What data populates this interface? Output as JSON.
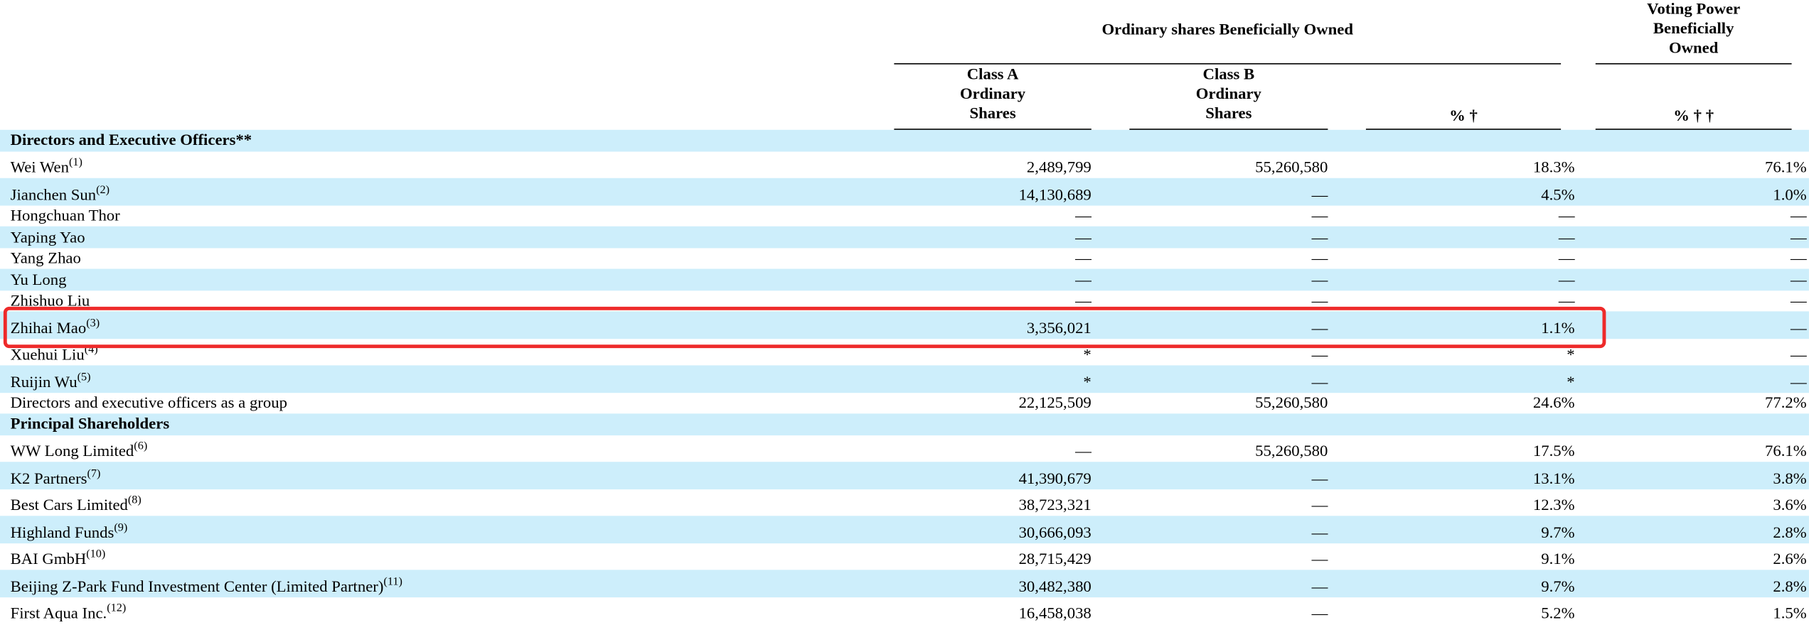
{
  "header": {
    "groups": [
      {
        "title": "Ordinary shares Beneficially Owned"
      },
      {
        "title": "Voting Power Beneficially Owned"
      }
    ],
    "columns": [
      "Class A Ordinary Shares",
      "Class B Ordinary Shares",
      "% †",
      "% † †"
    ]
  },
  "sections": [
    {
      "title": "Directors and Executive Officers**",
      "rows": [
        {
          "name": "Wei Wen",
          "note": "(1)",
          "values": [
            "2,489,799",
            "55,260,580",
            "18.3%",
            "76.1%"
          ]
        },
        {
          "name": "Jianchen Sun",
          "note": "(2)",
          "values": [
            "14,130,689",
            "—",
            "4.5%",
            "1.0%"
          ]
        },
        {
          "name": "Hongchuan Thor",
          "values": [
            "—",
            "—",
            "—",
            "—"
          ]
        },
        {
          "name": "Yaping Yao",
          "values": [
            "—",
            "—",
            "—",
            "—"
          ]
        },
        {
          "name": "Yang Zhao",
          "values": [
            "—",
            "—",
            "—",
            "—"
          ]
        },
        {
          "name": "Yu Long",
          "values": [
            "—",
            "—",
            "—",
            "—"
          ]
        },
        {
          "name": "Zhishuo Liu",
          "values": [
            "—",
            "—",
            "—",
            "—"
          ]
        },
        {
          "name": "Zhihai Mao",
          "note": "(3)",
          "values": [
            "3,356,021",
            "—",
            "1.1%",
            "—"
          ]
        },
        {
          "name": "Xuehui Liu",
          "note": "(4)",
          "values": [
            "*",
            "—",
            "*",
            "—"
          ]
        },
        {
          "name": "Ruijin Wu",
          "note": "(5)",
          "values": [
            "*",
            "—",
            "*",
            "—"
          ]
        },
        {
          "name": "Directors and executive officers as a group",
          "values": [
            "22,125,509",
            "55,260,580",
            "24.6%",
            "77.2%"
          ]
        }
      ]
    },
    {
      "title": "Principal Shareholders",
      "rows": [
        {
          "name": "WW Long Limited",
          "note": "(6)",
          "values": [
            "—",
            "55,260,580",
            "17.5%",
            "76.1%"
          ]
        },
        {
          "name": "K2 Partners",
          "note": "(7)",
          "values": [
            "41,390,679",
            "—",
            "13.1%",
            "3.8%"
          ]
        },
        {
          "name": "Best Cars Limited",
          "note": "(8)",
          "values": [
            "38,723,321",
            "—",
            "12.3%",
            "3.6%"
          ]
        },
        {
          "name": "Highland Funds",
          "note": "(9)",
          "values": [
            "30,666,093",
            "—",
            "9.7%",
            "2.8%"
          ]
        },
        {
          "name": "BAI GmbH",
          "note": "(10)",
          "values": [
            "28,715,429",
            "—",
            "9.1%",
            "2.6%"
          ]
        },
        {
          "name": "Beijing Z-Park Fund Investment Center (Limited Partner)",
          "note": "(11)",
          "values": [
            "30,482,380",
            "—",
            "9.7%",
            "2.8%"
          ]
        },
        {
          "name": "First Aqua Inc.",
          "note": "(12)",
          "values": [
            "16,458,038",
            "—",
            "5.2%",
            "1.5%"
          ]
        }
      ]
    }
  ]
}
